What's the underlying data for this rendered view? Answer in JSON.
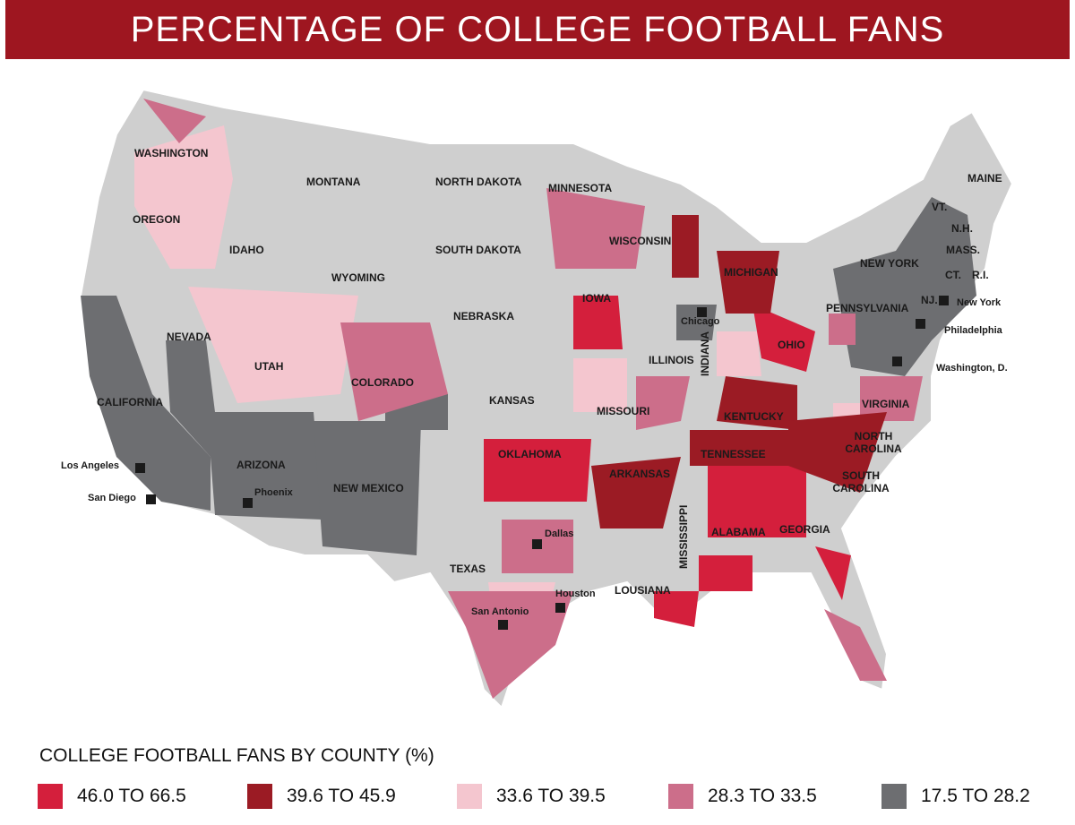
{
  "title": "PERCENTAGE OF COLLEGE FOOTBALL FANS",
  "colors": {
    "header": "#9e1620",
    "base": "#cfcfcf",
    "c1": "#d41f3c",
    "c2": "#9b1b24",
    "c3": "#f4c6cf",
    "c4": "#cc6e8a",
    "c5": "#6d6e71"
  },
  "states": [
    "WASHINGTON",
    "OREGON",
    "IDAHO",
    "MONTANA",
    "NORTH DAKOTA",
    "MINNESOTA",
    "SOUTH DAKOTA",
    "WYOMING",
    "WISCONSIN",
    "MICHIGAN",
    "IOWA",
    "NEBRASKA",
    "NEVADA",
    "UTAH",
    "COLORADO",
    "CALIFORNIA",
    "KANSAS",
    "ILLINOIS",
    "INDIANA",
    "OHIO",
    "MISSOURI",
    "KENTUCKY",
    "ARIZONA",
    "NEW MEXICO",
    "OKLAHOMA",
    "ARKANSAS",
    "TENNESSEE",
    "TEXAS",
    "MISSISSIPPI",
    "ALABAMA",
    "GEORGIA",
    "LOUSIANA",
    "VIRGINIA",
    "NORTH CAROLINA",
    "SOUTH CAROLINA",
    "PENNSYLVANIA",
    "NEW YORK",
    "MAINE",
    "VT.",
    "N.H.",
    "MASS.",
    "CT.",
    "R.I.",
    "NJ."
  ],
  "cities": [
    "Los Angeles",
    "San Diego",
    "Phoenix",
    "Dallas",
    "Houston",
    "San Antonio",
    "Chicago",
    "New York",
    "Philadelphia",
    "Washington, D."
  ],
  "legend": {
    "title": "COLLEGE FOOTBALL FANS BY COUNTY (%)",
    "items": [
      {
        "label": "46.0 TO 66.5",
        "color": "#d41f3c"
      },
      {
        "label": "39.6 TO 45.9",
        "color": "#9b1b24"
      },
      {
        "label": "33.6 TO 39.5",
        "color": "#f4c6cf"
      },
      {
        "label": "28.3 TO 33.5",
        "color": "#cc6e8a"
      },
      {
        "label": "17.5 TO 28.2",
        "color": "#6d6e71"
      }
    ]
  }
}
